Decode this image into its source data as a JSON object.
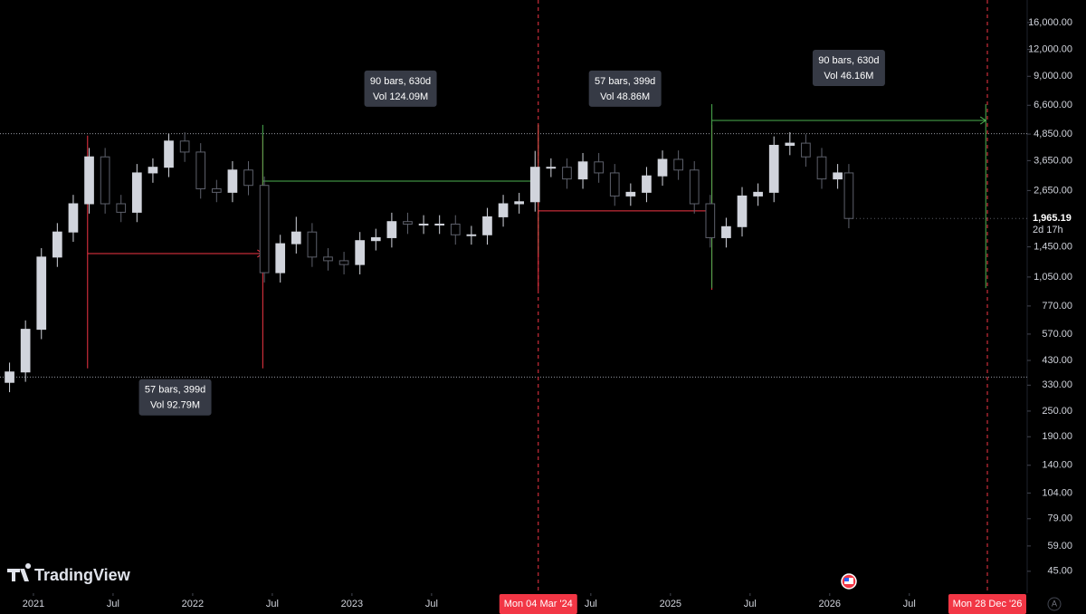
{
  "chart_data": {
    "type": "candlestick",
    "log_scale": true,
    "xlim": [
      2020.79,
      2027.24
    ],
    "ylim": [
      35.6,
      20370
    ],
    "xticks": [
      {
        "value": 2021,
        "label": "2021"
      },
      {
        "value": 2021.5,
        "label": "Jul"
      },
      {
        "value": 2022,
        "label": "2022"
      },
      {
        "value": 2022.5,
        "label": "Jul"
      },
      {
        "value": 2023,
        "label": "2023"
      },
      {
        "value": 2023.5,
        "label": "Jul"
      },
      {
        "value": 2024.5,
        "label": "Jul"
      },
      {
        "value": 2025,
        "label": "2025"
      },
      {
        "value": 2025.5,
        "label": "Jul"
      },
      {
        "value": 2026,
        "label": "2026"
      },
      {
        "value": 2026.5,
        "label": "Jul"
      }
    ],
    "yticks": [
      {
        "value": 16000,
        "label": "16,000.00"
      },
      {
        "value": 12000,
        "label": "12,000.00"
      },
      {
        "value": 9000,
        "label": "9,000.00"
      },
      {
        "value": 6600,
        "label": "6,600.00"
      },
      {
        "value": 4850,
        "label": "4,850.00"
      },
      {
        "value": 3650,
        "label": "3,650.00"
      },
      {
        "value": 2650,
        "label": "2,650.00"
      },
      {
        "value": 1450,
        "label": "1,450.00"
      },
      {
        "value": 1050,
        "label": "1,050.00"
      },
      {
        "value": 770,
        "label": "770.00"
      },
      {
        "value": 570,
        "label": "570.00"
      },
      {
        "value": 430,
        "label": "430.00"
      },
      {
        "value": 330,
        "label": "330.00"
      },
      {
        "value": 250,
        "label": "250.00"
      },
      {
        "value": 190,
        "label": "190.00"
      },
      {
        "value": 140,
        "label": "140.00"
      },
      {
        "value": 104,
        "label": "104.00"
      },
      {
        "value": 79,
        "label": "79.00"
      },
      {
        "value": 59,
        "label": "59.00"
      },
      {
        "value": 45,
        "label": "45.00"
      }
    ],
    "last_price": {
      "value": 1965.19,
      "label": "1,965.19"
    },
    "countdown": "2d 17h",
    "up_color": "#d1d4dc",
    "down_color": "#5d606b",
    "x": [
      2020.85,
      2020.95,
      2021.05,
      2021.15,
      2021.25,
      2021.35,
      2021.45,
      2021.55,
      2021.65,
      2021.75,
      2021.85,
      2021.95,
      2022.05,
      2022.15,
      2022.25,
      2022.35,
      2022.45,
      2022.55,
      2022.65,
      2022.75,
      2022.85,
      2022.95,
      2023.05,
      2023.15,
      2023.25,
      2023.35,
      2023.45,
      2023.55,
      2023.65,
      2023.75,
      2023.85,
      2023.95,
      2024.05,
      2024.15,
      2024.25,
      2024.35,
      2024.45,
      2024.55,
      2024.65,
      2024.75,
      2024.85,
      2024.95,
      2025.05,
      2025.15,
      2025.25,
      2025.35,
      2025.45,
      2025.55,
      2025.65,
      2025.75,
      2025.85,
      2025.95,
      2026.05,
      2026.12
    ],
    "open": [
      340,
      380,
      600,
      1300,
      1700,
      2300,
      3800,
      2300,
      2100,
      3200,
      3400,
      4500,
      4000,
      2700,
      2600,
      3300,
      2800,
      1100,
      1500,
      1700,
      1300,
      1250,
      1200,
      1550,
      1600,
      1900,
      1850,
      1850,
      1850,
      1650,
      1650,
      2000,
      2300,
      2350,
      3400,
      3400,
      3000,
      3600,
      3200,
      2500,
      2600,
      3100,
      3700,
      3300,
      2300,
      1600,
      1800,
      2500,
      2600,
      4300,
      4400,
      3800,
      3000,
      3200
    ],
    "high": [
      420,
      660,
      1430,
      1870,
      2530,
      4180,
      4180,
      2530,
      3520,
      3740,
      4870,
      4950,
      4400,
      2970,
      3630,
      3630,
      3080,
      1650,
      2000,
      1870,
      1430,
      1375,
      1700,
      1760,
      2090,
      2090,
      2035,
      2035,
      2035,
      1815,
      2200,
      2530,
      2585,
      4050,
      3740,
      3740,
      3960,
      3960,
      3520,
      2860,
      3410,
      4070,
      4070,
      3630,
      2530,
      1980,
      2750,
      2860,
      4730,
      4950,
      4840,
      4180,
      3520,
      3520
    ],
    "low": [
      306,
      342,
      540,
      1170,
      1530,
      2070,
      2070,
      1890,
      1890,
      2880,
      3060,
      3600,
      2430,
      2340,
      2340,
      2520,
      990,
      990,
      1350,
      1170,
      1125,
      1080,
      1080,
      1395,
      1440,
      1665,
      1665,
      1665,
      1485,
      1485,
      1485,
      1800,
      2070,
      2115,
      3060,
      2700,
      2700,
      2880,
      2250,
      2250,
      2340,
      2790,
      2970,
      2070,
      1440,
      1440,
      1620,
      2250,
      2340,
      3870,
      3420,
      2700,
      2700,
      1770
    ],
    "close": [
      380,
      600,
      1300,
      1700,
      2300,
      3800,
      2300,
      2100,
      3200,
      3400,
      4500,
      4000,
      2700,
      2600,
      3300,
      2800,
      1100,
      1500,
      1700,
      1300,
      1250,
      1200,
      1550,
      1600,
      1900,
      1850,
      1850,
      1850,
      1650,
      1650,
      2000,
      2300,
      2350,
      3400,
      3400,
      3000,
      3600,
      3200,
      2500,
      2600,
      3100,
      3700,
      3300,
      2300,
      1600,
      1800,
      2500,
      2600,
      4300,
      4400,
      3800,
      3000,
      3200,
      1965.19
    ],
    "horizontal_lines": [
      4870,
      360
    ],
    "measures": [
      {
        "x": [
          2021.34,
          2022.44
        ],
        "high": 4770,
        "low": 395,
        "level": 1350,
        "color": "#f23645",
        "bars": "57 bars, 399d",
        "vol": "Vol 92.79M"
      },
      {
        "x": [
          2022.44,
          2024.17
        ],
        "high": 5350,
        "low": 1350,
        "level": 2930,
        "color": "#4caf50",
        "bars": "90 bars, 630d",
        "vol": "Vol 124.09M"
      },
      {
        "x": [
          2024.17,
          2025.26
        ],
        "high": 5350,
        "low": 916,
        "level": 2130,
        "color": "#f23645",
        "bars": "57 bars, 399d",
        "vol": "Vol 48.86M"
      },
      {
        "x": [
          2025.26,
          2026.98
        ],
        "high": 6680,
        "low": 933,
        "level": 5610,
        "color": "#4caf50",
        "bars": "90 bars, 630d",
        "vol": "Vol 46.16M"
      }
    ],
    "date_markers": [
      {
        "value": 2024.17,
        "label": "Mon 04 Mar '24"
      },
      {
        "value": 2026.99,
        "label": "Mon 28 Dec '26"
      }
    ]
  },
  "brand": "TradingView",
  "auto_label": "A"
}
